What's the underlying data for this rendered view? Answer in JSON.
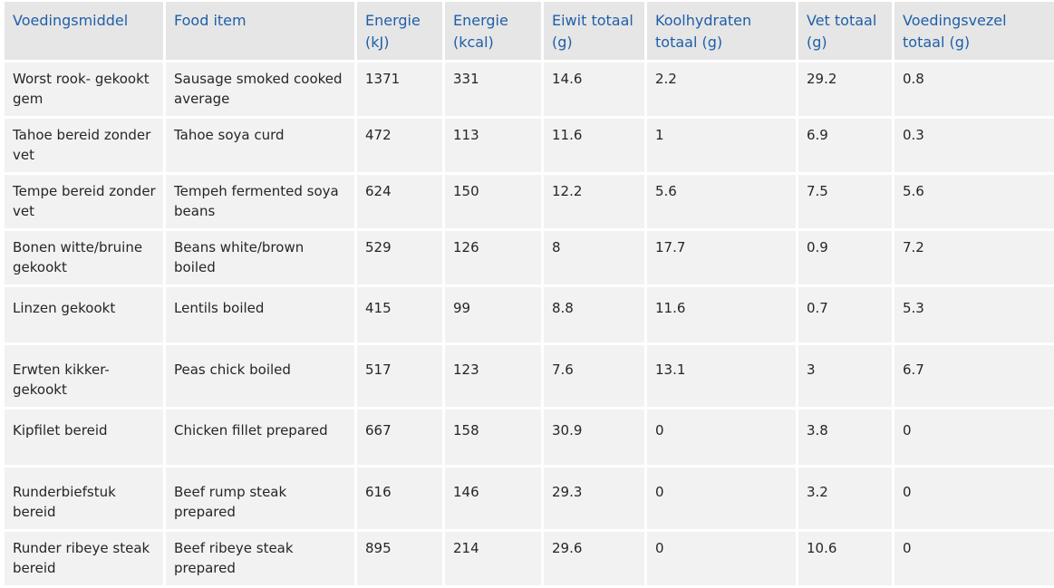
{
  "table": {
    "headers": [
      "Voedingsmiddel",
      "Food item",
      "Energie (kJ)",
      "Energie (kcal)",
      "Eiwit totaal (g)",
      "Koolhydraten totaal (g)",
      "Vet totaal (g)",
      "Voedingsvezel totaal (g)"
    ],
    "rows": [
      [
        "Worst rook- gekookt gem",
        "Sausage smoked cooked average",
        "1371",
        "331",
        "14.6",
        "2.2",
        "29.2",
        "0.8"
      ],
      [
        "Tahoe bereid zonder vet",
        "Tahoe soya curd",
        "472",
        "113",
        "11.6",
        "1",
        "6.9",
        "0.3"
      ],
      [
        "Tempe bereid zonder vet",
        "Tempeh fermented soya beans",
        "624",
        "150",
        "12.2",
        "5.6",
        "7.5",
        "5.6"
      ],
      [
        "Bonen witte/bruine gekookt",
        "Beans white/brown boiled",
        "529",
        "126",
        "8",
        "17.7",
        "0.9",
        "7.2"
      ],
      [
        "Linzen gekookt",
        "Lentils boiled",
        "415",
        "99",
        "8.8",
        "11.6",
        "0.7",
        "5.3"
      ],
      [
        "Erwten kikker- gekookt",
        "Peas chick boiled",
        "517",
        "123",
        "7.6",
        "13.1",
        "3",
        "6.7"
      ],
      [
        "Kipfilet bereid",
        "Chicken fillet prepared",
        "667",
        "158",
        "30.9",
        "0",
        "3.8",
        "0"
      ],
      [
        "Runderbiefstuk bereid",
        "Beef rump steak prepared",
        "616",
        "146",
        "29.3",
        "0",
        "3.2",
        "0"
      ],
      [
        "Runder ribeye steak bereid",
        "Beef ribeye steak prepared",
        "895",
        "214",
        "29.6",
        "0",
        "10.6",
        "0"
      ]
    ]
  }
}
